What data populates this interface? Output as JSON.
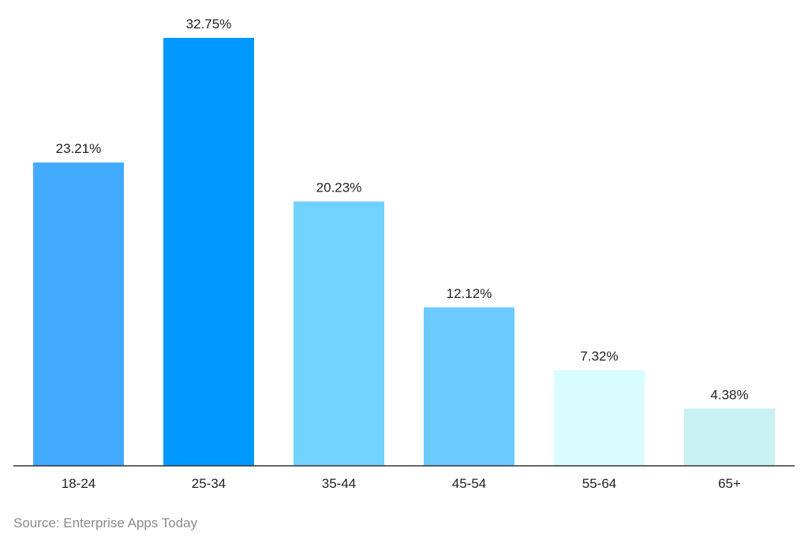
{
  "chart_data": {
    "type": "bar",
    "title": "",
    "xlabel": "",
    "ylabel": "",
    "categories": [
      "18-24",
      "25-34",
      "35-44",
      "45-54",
      "55-64",
      "65+"
    ],
    "values": [
      23.21,
      32.75,
      20.23,
      12.12,
      7.32,
      4.38
    ],
    "value_labels": [
      "23.21%",
      "32.75%",
      "20.23%",
      "12.12%",
      "7.32%",
      "4.38%"
    ],
    "bar_colors": [
      "#42aaff",
      "#0099ff",
      "#72d2ff",
      "#6ccbfe",
      "#d8fcff",
      "#c8f1f1"
    ],
    "ylim": [
      0,
      32.75
    ],
    "grid": false,
    "legend": "none"
  },
  "source": "Source: Enterprise Apps Today",
  "colors": {
    "axis": "#333333",
    "label_text": "#222222",
    "source_text": "#8a8a8a"
  }
}
